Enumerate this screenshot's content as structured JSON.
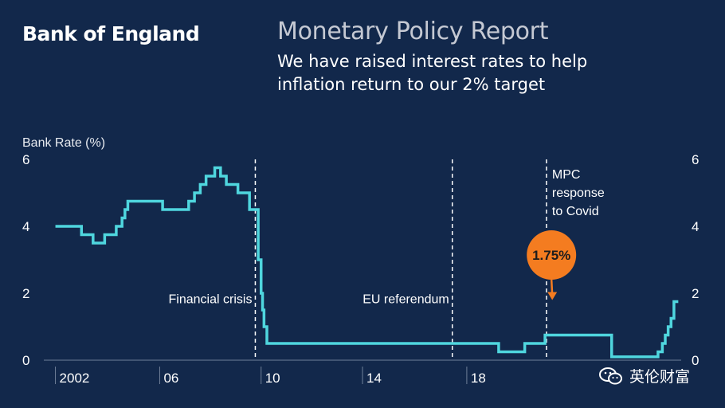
{
  "header": {
    "brand": "Bank of England",
    "report_title": "Monetary Policy Report",
    "subtitle_line1": "We have raised interest rates to help",
    "subtitle_line2": "inflation return to our 2% target"
  },
  "watermark": {
    "text": "英伦财富",
    "icon": "wechat-logo-icon"
  },
  "chart_data": {
    "type": "line",
    "ylabel": "Bank Rate (%)",
    "ylim": [
      0,
      6
    ],
    "y_ticks": [
      "0",
      "2",
      "4",
      "6"
    ],
    "xlim": [
      2000.6,
      2022.6
    ],
    "x_ticks": [
      {
        "value": 2001,
        "label": "2002"
      },
      {
        "value": 2004.6,
        "label": "06"
      },
      {
        "value": 2008.1,
        "label": "10"
      },
      {
        "value": 2011.6,
        "label": "14"
      },
      {
        "value": 2015.2,
        "label": "18"
      }
    ],
    "grid": false,
    "colors": {
      "line": "#4fd6de",
      "callout": "#f47c20",
      "background": "#12284b"
    },
    "series": [
      {
        "step": true,
        "x": [
          2001.0,
          2001.9,
          2002.3,
          2002.7,
          2003.1,
          2003.3,
          2003.4,
          2003.5,
          2003.7,
          2004.7,
          2005.6,
          2005.8,
          2006.0,
          2006.2,
          2006.5,
          2006.7,
          2006.9,
          2007.3,
          2007.5,
          2007.7,
          2008.0,
          2008.1,
          2008.15,
          2008.2,
          2008.3,
          2008.35,
          2008.4,
          2008.45,
          2016.3,
          2017.2,
          2017.9,
          2019.0,
          2020.2,
          2020.25,
          2021.8,
          2021.95,
          2022.05,
          2022.15,
          2022.25,
          2022.35,
          2022.5
        ],
        "y": [
          4.0,
          3.75,
          3.5,
          3.75,
          4.0,
          4.25,
          4.5,
          4.75,
          4.75,
          4.5,
          4.75,
          5.0,
          5.25,
          5.5,
          5.75,
          5.5,
          5.25,
          5.0,
          5.0,
          4.5,
          3.0,
          2.0,
          1.5,
          1.0,
          0.5,
          0.5,
          0.5,
          0.5,
          0.25,
          0.5,
          0.75,
          0.75,
          0.1,
          0.1,
          0.25,
          0.5,
          0.75,
          1.0,
          1.25,
          1.75,
          1.75
        ]
      }
    ],
    "annotations": [
      {
        "type": "vline",
        "x": 2007.9,
        "label": "Financial crisis",
        "label_side": "left"
      },
      {
        "type": "vline",
        "x": 2014.7,
        "label": "EU referendum",
        "label_side": "left"
      },
      {
        "type": "vline",
        "x": 2017.95,
        "label_lines": [
          "MPC",
          "response",
          "to Covid"
        ],
        "label_side": "right"
      }
    ],
    "callout": {
      "x": 2018.15,
      "y": 1.75,
      "label": "1.75%"
    }
  }
}
